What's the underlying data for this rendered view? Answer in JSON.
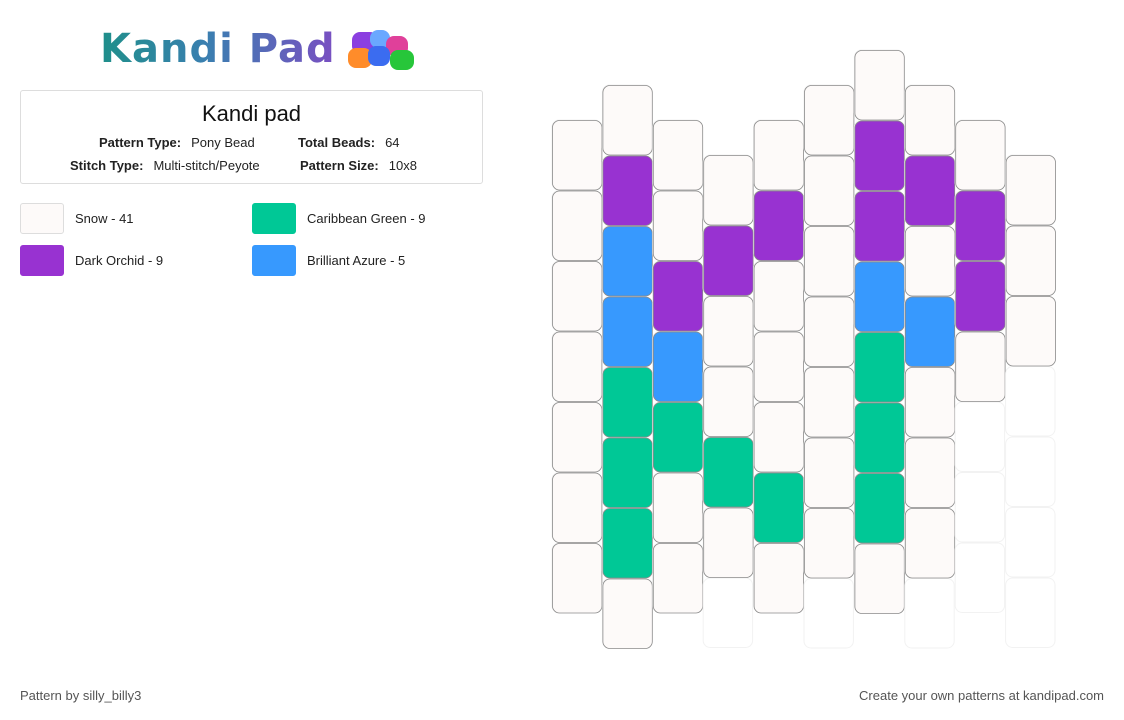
{
  "logo": {
    "text": "Kandi Pad"
  },
  "pattern": {
    "title": "Kandi pad",
    "labels": {
      "type": "Pattern Type:",
      "total": "Total Beads:",
      "stitch": "Stitch Type:",
      "size": "Pattern Size:"
    },
    "type": "Pony Bead",
    "total_beads": "64",
    "stitch": "Multi-stitch/Peyote",
    "size": "10x8"
  },
  "colors": {
    "snow": "#fdfaf9",
    "orchid": "#9832d1",
    "green": "#00c896",
    "azure": "#3799fe"
  },
  "legend": [
    {
      "label": "Snow - 41",
      "color": "#fdfaf9"
    },
    {
      "label": "Caribbean Green - 9",
      "color": "#00c896"
    },
    {
      "label": "Dark Orchid - 9",
      "color": "#9832d1"
    },
    {
      "label": "Brilliant Azure - 5",
      "color": "#3799fe"
    }
  ],
  "grid": {
    "columns": [
      {
        "rows": [
          "S",
          "S",
          "S",
          "S",
          "S",
          "S",
          "S"
        ]
      },
      {
        "rows": [
          "S",
          "O",
          "A",
          "A",
          "G",
          "G",
          "G",
          "S"
        ]
      },
      {
        "rows": [
          "S",
          "S",
          "O",
          "A",
          "G",
          "S",
          "S"
        ]
      },
      {
        "rows": [
          "S",
          "O",
          "S",
          "S",
          "G",
          "S"
        ]
      },
      {
        "rows": [
          "S",
          "O",
          "S",
          "S",
          "S",
          "G",
          "S"
        ]
      },
      {
        "rows": [
          "S",
          "S",
          "S",
          "S",
          "S",
          "S",
          "S"
        ]
      },
      {
        "rows": [
          "S",
          "O",
          "O",
          "A",
          "G",
          "G",
          "G",
          "S"
        ]
      },
      {
        "rows": [
          "S",
          "O",
          "S",
          "A",
          "S",
          "S",
          "S"
        ]
      },
      {
        "rows": [
          "S",
          "O",
          "O",
          "S"
        ]
      },
      {
        "rows": [
          "S",
          "S",
          "S"
        ]
      }
    ]
  },
  "footer": {
    "left": "Pattern by silly_billy3",
    "right": "Create your own patterns at kandipad.com"
  }
}
